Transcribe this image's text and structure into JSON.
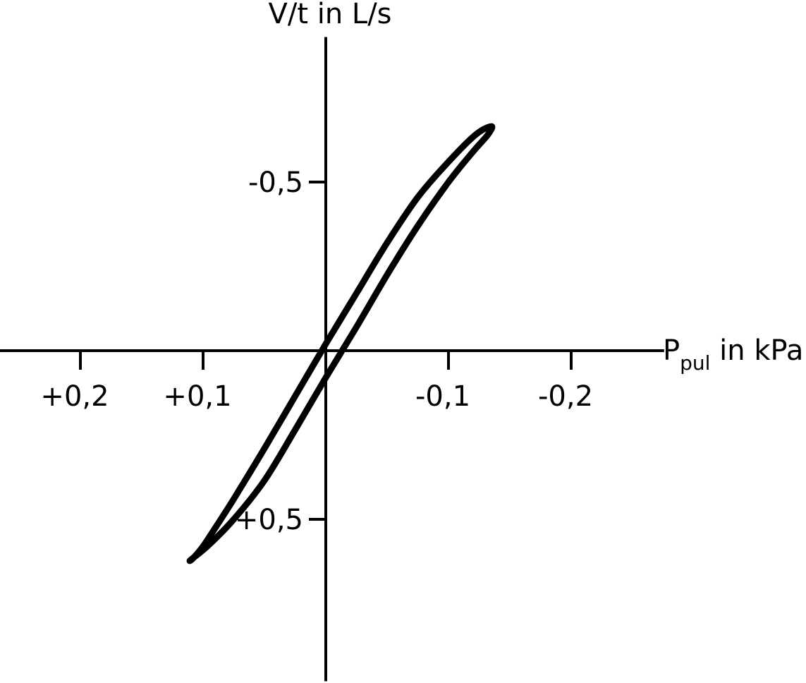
{
  "chart_data": {
    "type": "line",
    "title": "",
    "ylabel": "V/t in L/s",
    "xlabel": {
      "main": "P",
      "subscript": "pul",
      "suffix": " in kPa"
    },
    "x_axis": {
      "direction": "reversed",
      "range": [
        0.27,
        -0.27
      ],
      "ticks": [
        {
          "value": 0.2,
          "label": "+0,2"
        },
        {
          "value": 0.1,
          "label": "+0,1"
        },
        {
          "value": -0.1,
          "label": "-0,1"
        },
        {
          "value": -0.2,
          "label": "-0,2"
        }
      ]
    },
    "y_axis": {
      "direction": "reversed",
      "range": [
        -0.93,
        0.98
      ],
      "ticks": [
        {
          "value": -0.5,
          "label": "-0,5"
        },
        {
          "value": 0.5,
          "label": "+0,5"
        }
      ]
    },
    "grid": false,
    "legend": "none",
    "series": [
      {
        "closed": true,
        "points": [
          {
            "x": 0.108,
            "y": 0.615
          },
          {
            "x": 0.1,
            "y": 0.58
          },
          {
            "x": 0.09,
            "y": 0.525
          },
          {
            "x": 0.075,
            "y": 0.44
          },
          {
            "x": 0.05,
            "y": 0.29
          },
          {
            "x": 0.025,
            "y": 0.135
          },
          {
            "x": 0.0,
            "y": -0.02
          },
          {
            "x": -0.025,
            "y": -0.17
          },
          {
            "x": -0.05,
            "y": -0.32
          },
          {
            "x": -0.075,
            "y": -0.455
          },
          {
            "x": -0.1,
            "y": -0.56
          },
          {
            "x": -0.122,
            "y": -0.64
          },
          {
            "x": -0.135,
            "y": -0.665
          },
          {
            "x": -0.132,
            "y": -0.64
          },
          {
            "x": -0.12,
            "y": -0.59
          },
          {
            "x": -0.1,
            "y": -0.5
          },
          {
            "x": -0.075,
            "y": -0.37
          },
          {
            "x": -0.05,
            "y": -0.225
          },
          {
            "x": -0.025,
            "y": -0.07
          },
          {
            "x": 0.0,
            "y": 0.08
          },
          {
            "x": 0.025,
            "y": 0.235
          },
          {
            "x": 0.05,
            "y": 0.385
          },
          {
            "x": 0.075,
            "y": 0.5
          },
          {
            "x": 0.095,
            "y": 0.575
          },
          {
            "x": 0.11,
            "y": 0.62
          }
        ]
      }
    ]
  }
}
